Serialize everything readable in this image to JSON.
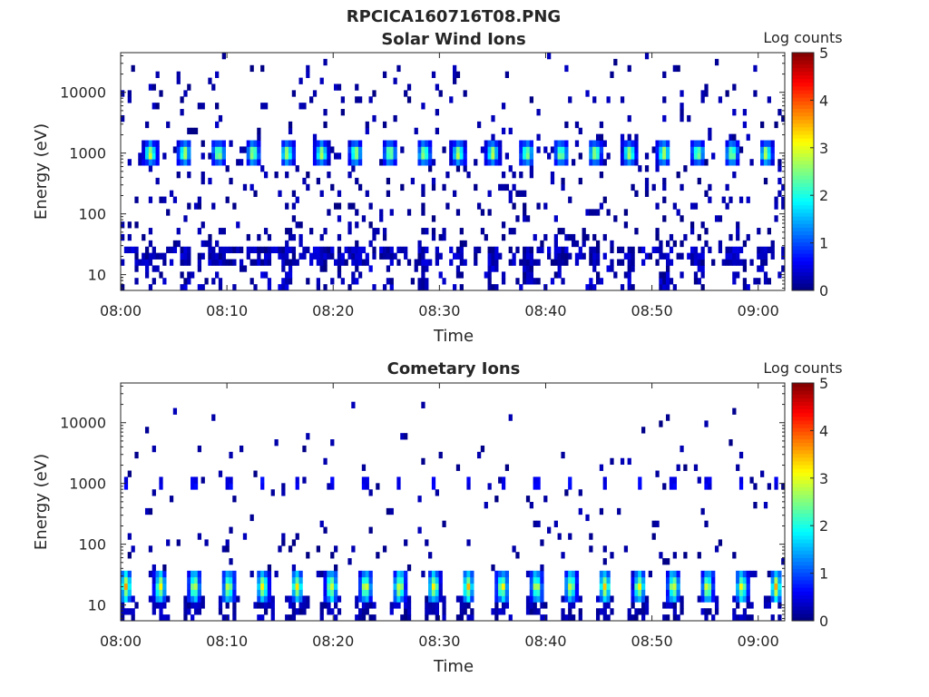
{
  "figure_title": "RPCICA160716T08.PNG",
  "chart_data": [
    {
      "type": "heatmap",
      "title": "Solar Wind Ions",
      "xlabel": "Time",
      "ylabel": "Energy (eV)",
      "x_tick_labels": [
        "08:00",
        "08:10",
        "08:20",
        "08:30",
        "08:40",
        "08:50",
        "09:00"
      ],
      "x_ticks_min": [
        0,
        10,
        20,
        30,
        40,
        50,
        60
      ],
      "xlim_min": [
        0,
        62.5
      ],
      "yscale": "log",
      "ylim": [
        5.5,
        45000
      ],
      "y_ticks": [
        10,
        100,
        1000,
        10000
      ],
      "y_tick_labels": [
        "10",
        "100",
        "1000",
        "10000"
      ],
      "colorbar": {
        "label": "Log counts",
        "range": [
          0,
          5
        ],
        "ticks": [
          "0",
          "1",
          "2",
          "3",
          "4",
          "5"
        ],
        "colormap": "jet"
      },
      "bursts": {
        "period_min": 3.22,
        "first_min": 2.8,
        "count": 19,
        "peak_energy_ev": 1000,
        "peak_log_counts": 2.2,
        "low_energy_ev": 20,
        "low_log_counts": 0.5
      },
      "background": {
        "energy_range_ev": [
          30,
          40000
        ],
        "log_counts": 0.3
      }
    },
    {
      "type": "heatmap",
      "title": "Cometary Ions",
      "xlabel": "Time",
      "ylabel": "Energy (eV)",
      "x_tick_labels": [
        "08:00",
        "08:10",
        "08:20",
        "08:30",
        "08:40",
        "08:50",
        "09:00"
      ],
      "x_ticks_min": [
        0,
        10,
        20,
        30,
        40,
        50,
        60
      ],
      "xlim_min": [
        0,
        62.5
      ],
      "yscale": "log",
      "ylim": [
        5.5,
        45000
      ],
      "y_ticks": [
        10,
        100,
        1000,
        10000
      ],
      "y_tick_labels": [
        "10",
        "100",
        "1000",
        "10000"
      ],
      "colorbar": {
        "label": "Log counts",
        "range": [
          0,
          5
        ],
        "ticks": [
          "0",
          "1",
          "2",
          "3",
          "4",
          "5"
        ],
        "colormap": "jet"
      },
      "bursts": {
        "period_min": 3.22,
        "first_min": 0.5,
        "count": 20,
        "peak_energy_ev": 20,
        "peak_log_counts": 2.0,
        "high_energy_ev": 1000,
        "high_log_counts": 0.4
      },
      "background": {
        "energy_range_ev": [
          30,
          40000
        ],
        "log_counts": 0.3
      }
    }
  ]
}
